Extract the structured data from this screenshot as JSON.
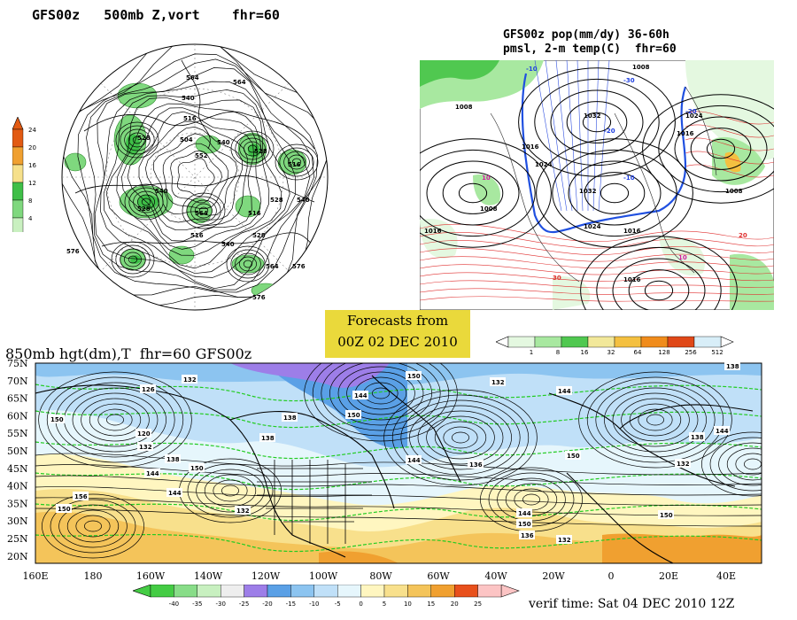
{
  "titles": {
    "top_left": "GFS00z   500mb Z,vort    fhr=60",
    "top_right_line1": "GFS00z pop(mm/dy) 36-60h",
    "top_right_line2": "pmsl, 2-m temp(C)  fhr=60",
    "bottom": "850mb hgt(dm),T  fhr=60 GFS00z"
  },
  "forecast_box": {
    "line1": "Forecasts from",
    "line2": "00Z 02 DEC 2010"
  },
  "verif_time": "verif time: Sat 04 DEC 2010 12Z",
  "colorbars": {
    "vorticity": {
      "labels": [
        "24",
        "20",
        "16",
        "12",
        "8",
        "4"
      ],
      "colors": [
        "#e25a12",
        "#f0a030",
        "#f6e08a",
        "#3fbf48",
        "#7fd87e",
        "#c9f0c0"
      ]
    },
    "pop": {
      "labels": [
        "1",
        "8",
        "16",
        "32",
        "64",
        "128",
        "256",
        "512"
      ],
      "colors": [
        "#e4f8e0",
        "#a8e8a0",
        "#50c850",
        "#f2e89a",
        "#f4c040",
        "#f08c1c",
        "#e04818",
        "#d8eef8"
      ]
    },
    "temperature": {
      "labels": [
        "-40",
        "-35",
        "-30",
        "-25",
        "-20",
        "-15",
        "-10",
        "-5",
        "0",
        "5",
        "10",
        "15",
        "20",
        "25"
      ],
      "colors": [
        "#44cc44",
        "#88dd88",
        "#c8f0c0",
        "#eeeeee",
        "#9d7ee8",
        "#5aa0e6",
        "#8cc4f0",
        "#c0e0f8",
        "#e6f6fc",
        "#fff6c0",
        "#f8e08c",
        "#f4c45a",
        "#f0a030",
        "#e8501c",
        "#fcc4c4"
      ]
    }
  },
  "map850": {
    "lat_labels": [
      "75N",
      "70N",
      "65N",
      "60N",
      "55N",
      "50N",
      "45N",
      "40N",
      "35N",
      "30N",
      "25N",
      "20N"
    ],
    "lon_labels": [
      "160E",
      "180",
      "160W",
      "140W",
      "120W",
      "100W",
      "80W",
      "60W",
      "40W",
      "20W",
      "0",
      "20E",
      "40E"
    ],
    "contour_labels": [
      "126",
      "132",
      "150",
      "120",
      "132",
      "138",
      "144",
      "150",
      "156",
      "150",
      "144",
      "132",
      "138",
      "144",
      "150",
      "138",
      "144",
      "150",
      "132",
      "136",
      "144",
      "150",
      "136",
      "132",
      "138",
      "144",
      "150",
      "132",
      "138",
      "144",
      "150"
    ]
  },
  "map500": {
    "contour_labels": [
      "564",
      "564",
      "540",
      "516",
      "528",
      "504",
      "540",
      "528",
      "516",
      "540",
      "528",
      "516",
      "564",
      "576",
      "576",
      "576",
      "552",
      "564",
      "540",
      "528",
      "516",
      "528",
      "540"
    ]
  },
  "pop_map": {
    "pressure_labels": [
      "1008",
      "1016",
      "1024",
      "1032",
      "1032",
      "1024",
      "1016",
      "1008",
      "1016",
      "1008",
      "1016",
      "1024",
      "1008",
      "1016"
    ],
    "temp_labels": [
      "-10",
      "-20",
      "-10",
      "10",
      "10",
      "-20",
      "-30",
      "20",
      "30"
    ]
  }
}
